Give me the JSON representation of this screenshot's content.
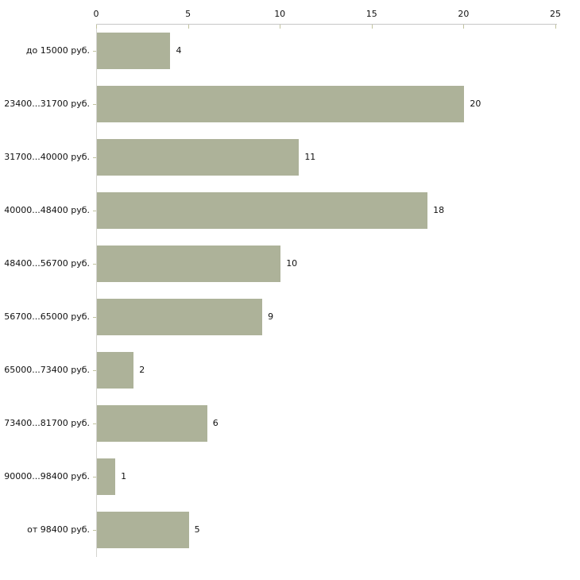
{
  "chart_data": {
    "type": "bar",
    "orientation": "horizontal",
    "title": "",
    "xlabel": "",
    "ylabel": "",
    "categories": [
      "до 15000 руб.",
      "23400...31700 руб.",
      "31700...40000 руб.",
      "40000...48400 руб.",
      "48400...56700 руб.",
      "56700...65000 руб.",
      "65000...73400 руб.",
      "73400...81700 руб.",
      "90000...98400 руб.",
      "от 98400 руб."
    ],
    "values": [
      4,
      20,
      11,
      18,
      10,
      9,
      2,
      6,
      1,
      5
    ],
    "x_ticks": [
      0,
      5,
      10,
      15,
      20,
      25
    ],
    "xlim": [
      0,
      25
    ],
    "grid": false,
    "legend": false,
    "value_labels_shown": true,
    "axis_position": "top",
    "colors": {
      "bar_fill": "#adb299",
      "axis_line": "#c6c6c6",
      "y_axis_line": "#d4d4d0",
      "tick_mark": "#c2c39f",
      "text": "#111111",
      "background": "#ffffff"
    }
  }
}
